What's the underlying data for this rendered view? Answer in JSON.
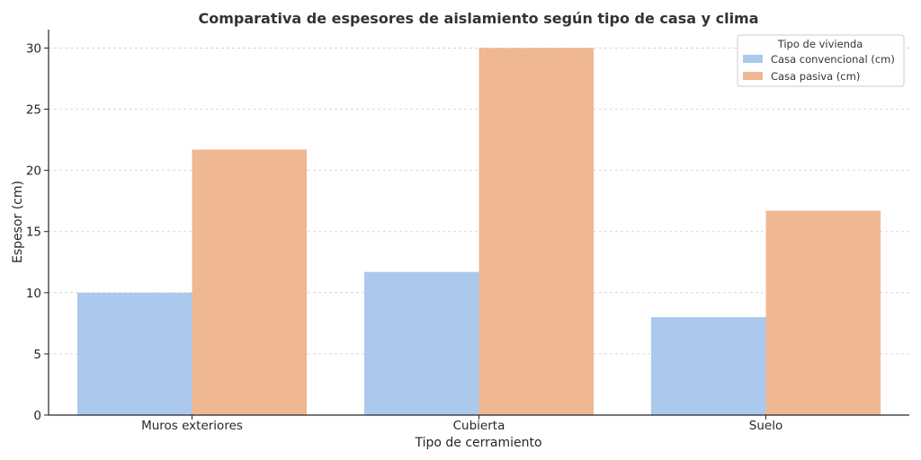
{
  "chart_data": {
    "type": "bar",
    "title": "Comparativa de espesores de aislamiento según tipo de casa y clima",
    "xlabel": "Tipo de cerramiento",
    "ylabel": "Espesor (cm)",
    "categories": [
      "Muros exteriores",
      "Cubierta",
      "Suelo"
    ],
    "series": [
      {
        "name": "Casa convencional (cm)",
        "values": [
          10,
          11.7,
          8
        ],
        "color": "#abc9ed"
      },
      {
        "name": "Casa pasiva (cm)",
        "values": [
          21.7,
          30,
          16.7
        ],
        "color": "#f0b793"
      }
    ],
    "ylim": [
      0,
      31.5
    ],
    "yticks": [
      0,
      5,
      10,
      15,
      20,
      25,
      30
    ],
    "grid": true,
    "legend": {
      "title": "Tipo de vivienda",
      "position": "top-right"
    }
  }
}
